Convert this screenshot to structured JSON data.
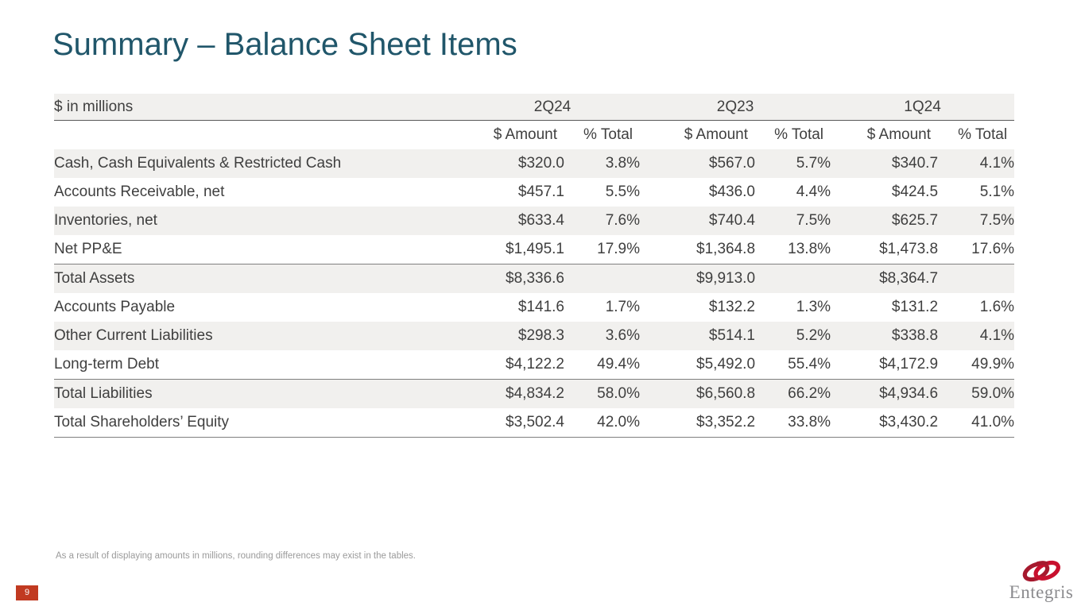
{
  "slide": {
    "title": "Summary – Balance Sheet Items",
    "footnote": "As a result of displaying amounts in millions, rounding differences may exist in the tables.",
    "page_number": "9"
  },
  "table": {
    "unit_label": "$ in millions",
    "period_headers": [
      "2Q24",
      "2Q23",
      "1Q24"
    ],
    "sub_headers": [
      "$ Amount",
      "% Total"
    ],
    "rows": [
      {
        "label": "Cash, Cash Equivalents & Restricted Cash",
        "values": [
          "$320.0",
          "3.8%",
          "$567.0",
          "5.7%",
          "$340.7",
          "4.1%"
        ],
        "rule_above": false
      },
      {
        "label": "Accounts Receivable, net",
        "values": [
          "$457.1",
          "5.5%",
          "$436.0",
          "4.4%",
          "$424.5",
          "5.1%"
        ],
        "rule_above": false
      },
      {
        "label": "Inventories, net",
        "values": [
          "$633.4",
          "7.6%",
          "$740.4",
          "7.5%",
          "$625.7",
          "7.5%"
        ],
        "rule_above": false
      },
      {
        "label": "Net PP&E",
        "values": [
          "$1,495.1",
          "17.9%",
          "$1,364.8",
          "13.8%",
          "$1,473.8",
          "17.6%"
        ],
        "rule_above": false
      },
      {
        "label": "Total Assets",
        "values": [
          "$8,336.6",
          "",
          "$9,913.0",
          "",
          "$8,364.7",
          ""
        ],
        "rule_above": true
      },
      {
        "label": "Accounts Payable",
        "values": [
          "$141.6",
          "1.7%",
          "$132.2",
          "1.3%",
          "$131.2",
          "1.6%"
        ],
        "rule_above": false
      },
      {
        "label": "Other Current Liabilities",
        "values": [
          "$298.3",
          "3.6%",
          "$514.1",
          "5.2%",
          "$338.8",
          "4.1%"
        ],
        "rule_above": false
      },
      {
        "label": "Long-term Debt",
        "values": [
          "$4,122.2",
          "49.4%",
          "$5,492.0",
          "55.4%",
          "$4,172.9",
          "49.9%"
        ],
        "rule_above": false
      },
      {
        "label": "Total Liabilities",
        "values": [
          "$4,834.2",
          "58.0%",
          "$6,560.8",
          "66.2%",
          "$4,934.6",
          "59.0%"
        ],
        "rule_above": true
      },
      {
        "label": "Total Shareholders’ Equity",
        "values": [
          "$3,502.4",
          "42.0%",
          "$3,352.2",
          "33.8%",
          "$3,430.2",
          "41.0%"
        ],
        "rule_above": false
      }
    ]
  },
  "logo": {
    "text": "Entegris",
    "icon": "entegris-rings-icon"
  },
  "colors": {
    "title_teal": "#20566A",
    "page_box_red": "#C13A21",
    "logo_red": "#C8102E",
    "logo_dark_red": "#A6192E",
    "logo_gray": "#8B8B8E",
    "row_shade_gray": "#F1F0EE",
    "header_rule_gray": "#595959",
    "text_gray": "#3F3F3F"
  }
}
